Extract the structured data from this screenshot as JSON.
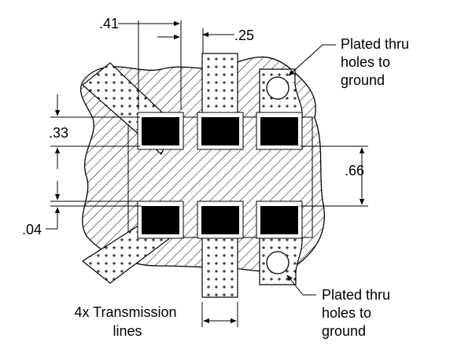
{
  "dimensions": {
    "pad_pitch": ".41",
    "stub_width": ".25",
    "pad_height": ".33",
    "row_spacing": ".66",
    "gap": ".04"
  },
  "labels": {
    "vias_top": [
      "Plated thru",
      "holes to",
      "ground"
    ],
    "vias_bottom": [
      "Plated thru",
      "holes to",
      "ground"
    ],
    "transmission": [
      "4x Transmission",
      "lines"
    ]
  },
  "colors": {
    "ink": "#000000",
    "background": "#ffffff"
  }
}
